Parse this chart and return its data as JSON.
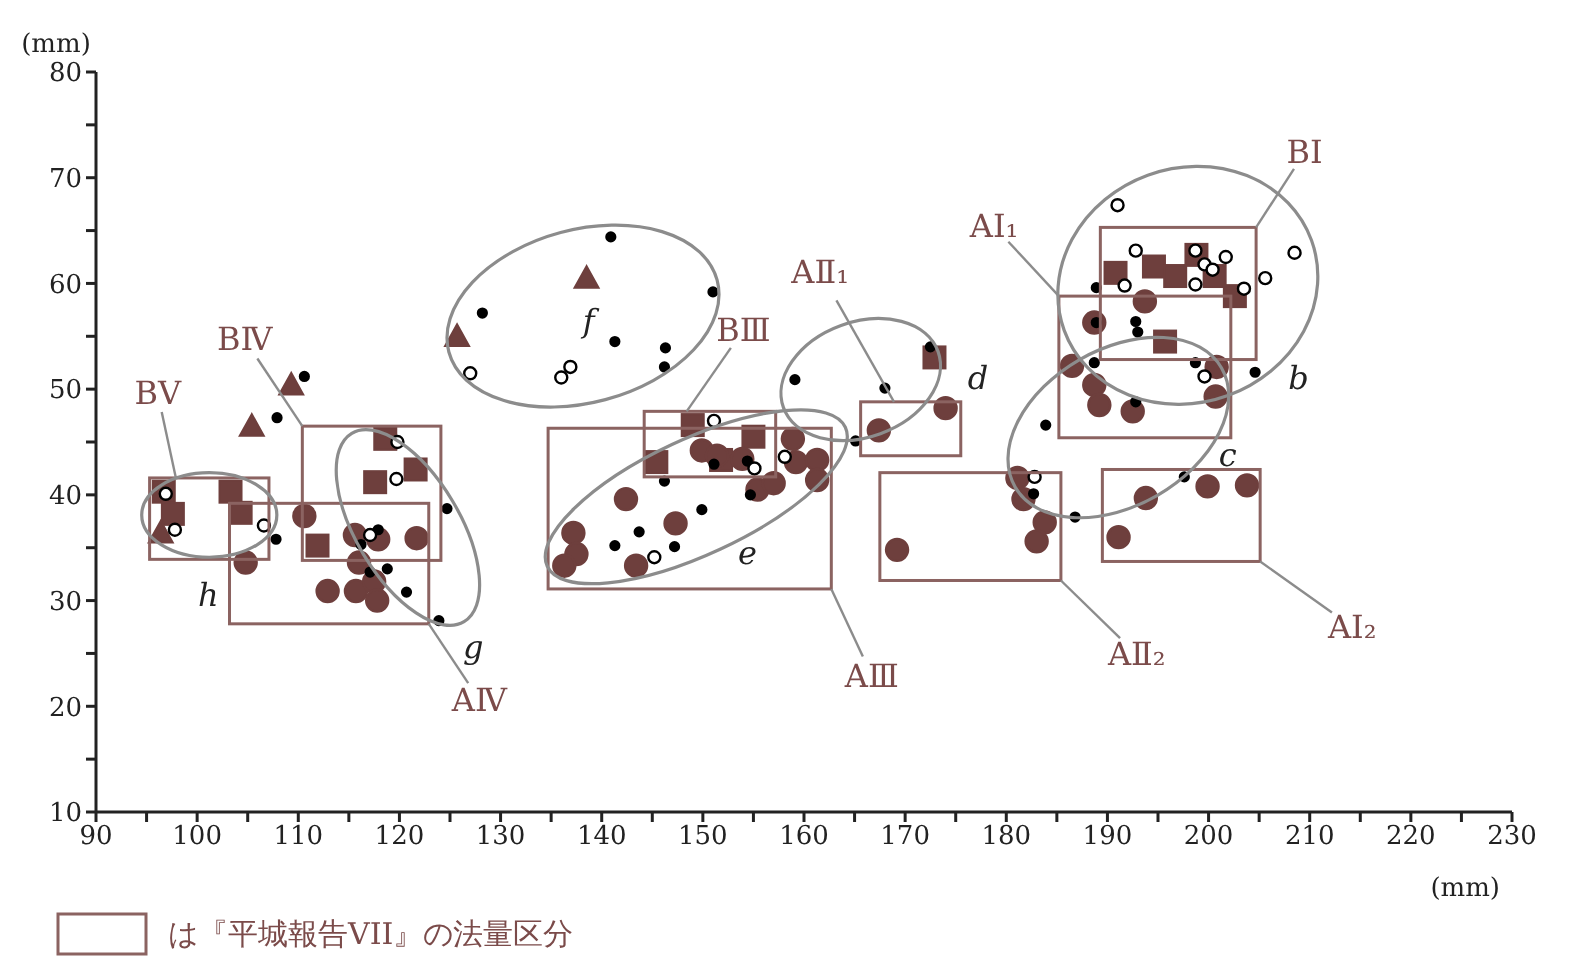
{
  "chart_data": {
    "type": "scatter",
    "xlabel": "(mm)",
    "ylabel": "(mm)",
    "xlim": [
      90,
      230
    ],
    "ylim": [
      10,
      80
    ],
    "xticks": [
      90,
      {
        "value": 95,
        "label": null
      },
      100,
      {
        "value": 105,
        "label": null
      },
      110,
      {
        "value": 115,
        "label": null
      },
      120,
      {
        "value": 125,
        "label": null
      },
      130,
      {
        "value": 135,
        "label": null
      },
      140,
      {
        "value": 145,
        "label": null
      },
      150,
      {
        "value": 155,
        "label": null
      },
      160,
      {
        "value": 165,
        "label": null
      },
      170,
      {
        "value": 175,
        "label": null
      },
      180,
      {
        "value": 185,
        "label": null
      },
      190,
      {
        "value": 195,
        "label": null
      },
      200,
      {
        "value": 205,
        "label": null
      },
      210,
      {
        "value": 215,
        "label": null
      },
      220,
      {
        "value": 225,
        "label": null
      },
      230
    ],
    "yticks": [
      10,
      {
        "value": 15,
        "label": null
      },
      20,
      {
        "value": 25,
        "label": null
      },
      30,
      {
        "value": 35,
        "label": null
      },
      40,
      {
        "value": 45,
        "label": null
      },
      50,
      {
        "value": 55,
        "label": null
      },
      60,
      {
        "value": 65,
        "label": null
      },
      70,
      {
        "value": 75,
        "label": null
      },
      80
    ],
    "grid": false,
    "series": [
      {
        "type": "scatter",
        "marker": "circle",
        "color": "#6e3f3d",
        "x": [
          110.6,
          104.8,
          112.9,
          115.6,
          115.7,
          116.0,
          117.9,
          117.5,
          117.8,
          121.7,
          142.4,
          137.2,
          137.5,
          136.3,
          143.4,
          147.3,
          149.9,
          151.4,
          153.9,
          155.4,
          157.0,
          158.9,
          159.2,
          161.3,
          161.3,
          167.4,
          174.0,
          169.2,
          181.1,
          181.7,
          183.8,
          183.0,
          193.7,
          188.7,
          186.5,
          188.7,
          189.2,
          192.5,
          200.8,
          200.7,
          193.8,
          191.1,
          199.9,
          203.8
        ],
        "values": [
          38.0,
          33.6,
          30.9,
          36.2,
          30.9,
          33.6,
          35.8,
          31.8,
          30.0,
          35.9,
          39.6,
          36.4,
          34.4,
          33.3,
          33.3,
          37.3,
          44.2,
          43.7,
          43.4,
          40.5,
          41.1,
          45.3,
          43.1,
          43.3,
          41.4,
          46.1,
          48.2,
          34.8,
          41.6,
          39.6,
          37.4,
          35.6,
          58.3,
          56.3,
          52.2,
          50.4,
          48.5,
          47.9,
          52.1,
          49.3,
          39.7,
          36.0,
          40.8,
          40.9
        ]
      },
      {
        "type": "scatter",
        "marker": "square",
        "color": "#6e3f3d",
        "x": [
          96.7,
          97.6,
          103.3,
          104.3,
          111.9,
          118.6,
          117.6,
          121.6,
          149.0,
          155.0,
          145.4,
          151.8,
          172.9,
          190.8,
          194.6,
          196.7,
          198.8,
          200.6,
          202.6,
          195.7
        ],
        "values": [
          40.3,
          38.2,
          40.3,
          38.3,
          35.2,
          45.3,
          41.2,
          42.4,
          46.6,
          45.5,
          43.1,
          43.3,
          53.0,
          61.0,
          61.6,
          60.7,
          62.7,
          60.7,
          58.8,
          54.5
        ]
      },
      {
        "type": "scatter",
        "marker": "triangle",
        "color": "#6e3f3d",
        "x": [
          96.4,
          105.4,
          109.3,
          125.7,
          138.5
        ],
        "values": [
          36.4,
          46.5,
          50.4,
          55.0,
          60.5
        ]
      },
      {
        "type": "scatter",
        "marker": "circle",
        "color": "#000000",
        "x": [
          110.6,
          107.9,
          116.2,
          117.9,
          117.1,
          118.8,
          120.7,
          124.7,
          123.9,
          107.8,
          128.2,
          140.9,
          151.0,
          141.3,
          146.3,
          146.2,
          146.2,
          151.1,
          154.4,
          154.7,
          149.9,
          143.7,
          141.3,
          147.2,
          159.1,
          168.0,
          165.1,
          172.5,
          182.7,
          186.8,
          183.9,
          188.9,
          188.9,
          192.8,
          193.0,
          188.7,
          198.7,
          204.6,
          192.8,
          197.6
        ],
        "values": [
          51.2,
          47.3,
          35.3,
          36.7,
          32.7,
          33.0,
          30.8,
          38.7,
          28.1,
          35.8,
          57.2,
          64.4,
          59.2,
          54.5,
          53.9,
          52.1,
          41.3,
          42.9,
          43.2,
          40.0,
          38.6,
          36.5,
          35.2,
          35.1,
          50.9,
          50.1,
          45.1,
          54.0,
          40.1,
          37.9,
          46.6,
          59.6,
          56.3,
          56.4,
          55.4,
          52.5,
          52.5,
          51.6,
          48.8,
          41.7
        ]
      },
      {
        "type": "scatter",
        "marker": "circle",
        "color": "#ffffff",
        "x": [
          96.9,
          97.8,
          106.6,
          117.1,
          119.8,
          119.7,
          127.0,
          136.0,
          136.9,
          151.1,
          155.1,
          158.1,
          145.2,
          182.8,
          191.0,
          192.8,
          191.7,
          198.7,
          199.6,
          200.4,
          201.7,
          198.7,
          205.6,
          203.5,
          208.5,
          199.6
        ],
        "values": [
          40.1,
          36.7,
          37.1,
          36.2,
          45.0,
          41.5,
          51.5,
          51.1,
          52.1,
          47.0,
          42.5,
          43.6,
          34.1,
          41.7,
          67.4,
          63.1,
          59.8,
          63.1,
          61.8,
          61.3,
          62.5,
          59.9,
          60.5,
          59.5,
          62.9,
          51.2
        ]
      }
    ],
    "annotations": [
      "BⅤ",
      "BⅣ",
      "BⅢ",
      "AⅡ₁",
      "AⅠ₁",
      "BⅠ",
      "AⅢ",
      "AⅡ₂",
      "AⅠ₂",
      "AⅣ",
      "f",
      "e",
      "d",
      "b",
      "c",
      "g",
      "h",
      "は『平城報告VII』の法量区分"
    ]
  }
}
